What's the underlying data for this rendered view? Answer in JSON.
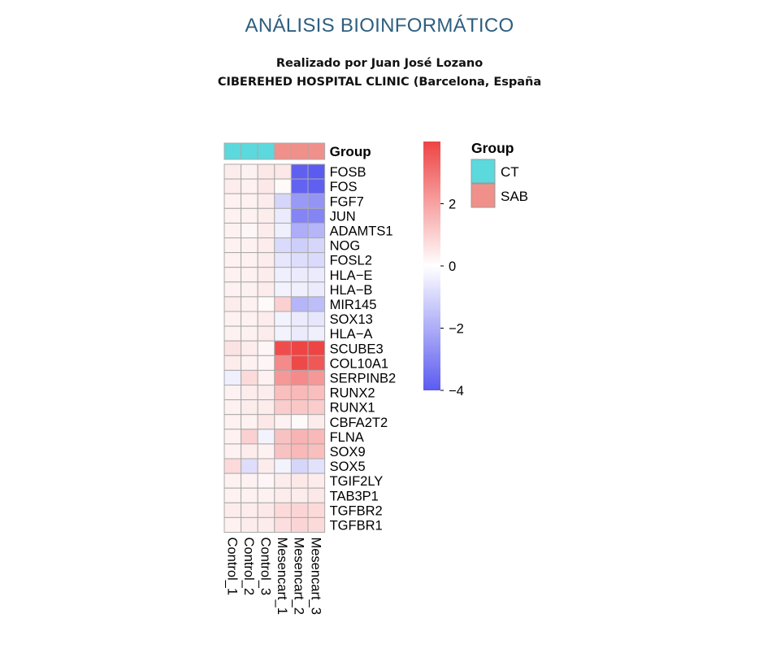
{
  "header": {
    "title": "ANÁLISIS BIOINFORMÁTICO",
    "author_line": "Realizado por Juan José Lozano",
    "institution_line": "CIBEREHED HOSPITAL CLINIC (Barcelona, España"
  },
  "chart_data": {
    "type": "heatmap",
    "title": "",
    "samples": [
      "Control_1",
      "Control_2",
      "Control_3",
      "Mesencart_1",
      "Mesencart_2",
      "Mesencart_3"
    ],
    "genes": [
      "FOSB",
      "FOS",
      "FGF7",
      "JUN",
      "ADAMTS1",
      "NOG",
      "FOSL2",
      "HLA−E",
      "HLA−B",
      "MIR145",
      "SOX13",
      "HLA−A",
      "SCUBE3",
      "COL10A1",
      "SERPINB2",
      "RUNX2",
      "RUNX1",
      "CBFA2T2",
      "FLNA",
      "SOX9",
      "SOX5",
      "TGIF2LY",
      "TAB3P1",
      "TGFBR2",
      "TGFBR1"
    ],
    "values": [
      [
        0.4,
        0.3,
        0.5,
        0.5,
        -3.9,
        -4.0
      ],
      [
        0.4,
        0.3,
        0.5,
        0.1,
        -3.8,
        -3.9
      ],
      [
        0.3,
        0.3,
        0.4,
        -1.0,
        -2.5,
        -2.6
      ],
      [
        0.3,
        0.3,
        0.4,
        -0.5,
        -3.0,
        -3.0
      ],
      [
        0.3,
        0.2,
        0.4,
        -0.4,
        -2.0,
        -1.8
      ],
      [
        0.3,
        0.3,
        0.4,
        -0.9,
        -1.2,
        -1.0
      ],
      [
        0.3,
        0.3,
        0.4,
        -0.6,
        -0.8,
        -0.9
      ],
      [
        0.3,
        0.3,
        0.4,
        -0.4,
        -0.5,
        -0.5
      ],
      [
        0.3,
        0.3,
        0.4,
        -0.3,
        -0.4,
        -0.5
      ],
      [
        0.4,
        0.3,
        0.1,
        1.0,
        -1.8,
        -1.6
      ],
      [
        0.3,
        0.3,
        0.4,
        -0.3,
        -0.5,
        -0.6
      ],
      [
        0.3,
        0.3,
        0.4,
        -0.3,
        -0.5,
        -0.4
      ],
      [
        0.6,
        0.4,
        0.2,
        3.8,
        4.0,
        4.0
      ],
      [
        0.4,
        0.3,
        0.2,
        2.5,
        3.9,
        3.6
      ],
      [
        -0.4,
        0.8,
        0.3,
        2.2,
        2.5,
        2.2
      ],
      [
        0.3,
        0.4,
        0.4,
        1.4,
        1.5,
        1.4
      ],
      [
        0.3,
        0.4,
        0.4,
        1.1,
        1.2,
        1.1
      ],
      [
        0.3,
        0.3,
        0.5,
        0.3,
        0.1,
        0.4
      ],
      [
        0.3,
        1.0,
        -0.3,
        1.3,
        1.6,
        1.5
      ],
      [
        0.3,
        0.4,
        0.3,
        1.3,
        1.5,
        1.4
      ],
      [
        0.8,
        -0.8,
        0.4,
        -0.3,
        -1.0,
        -0.7
      ],
      [
        0.3,
        0.3,
        0.2,
        0.4,
        0.5,
        0.4
      ],
      [
        0.3,
        0.3,
        0.3,
        0.4,
        0.4,
        0.5
      ],
      [
        0.4,
        0.4,
        0.5,
        0.8,
        0.9,
        0.8
      ],
      [
        0.3,
        0.4,
        0.4,
        0.7,
        0.9,
        0.8
      ]
    ],
    "groups": [
      "CT",
      "CT",
      "CT",
      "SAB",
      "SAB",
      "SAB"
    ],
    "annotation_label": "Group",
    "legend": {
      "title": "Group",
      "entries": [
        {
          "label": "CT",
          "color": "#5bd9dd"
        },
        {
          "label": "SAB",
          "color": "#f0908a"
        }
      ]
    },
    "color_scale": {
      "low_color": "#5b5bf0",
      "mid_color": "#ffffff",
      "high_color": "#ee4444",
      "min": -4,
      "max": 4,
      "ticks": [
        2,
        0,
        -2,
        -4
      ],
      "tick_labels": [
        "2",
        "0",
        "−2",
        "−4"
      ]
    },
    "grid": true,
    "cell_border_color": "#a9a9a9"
  }
}
